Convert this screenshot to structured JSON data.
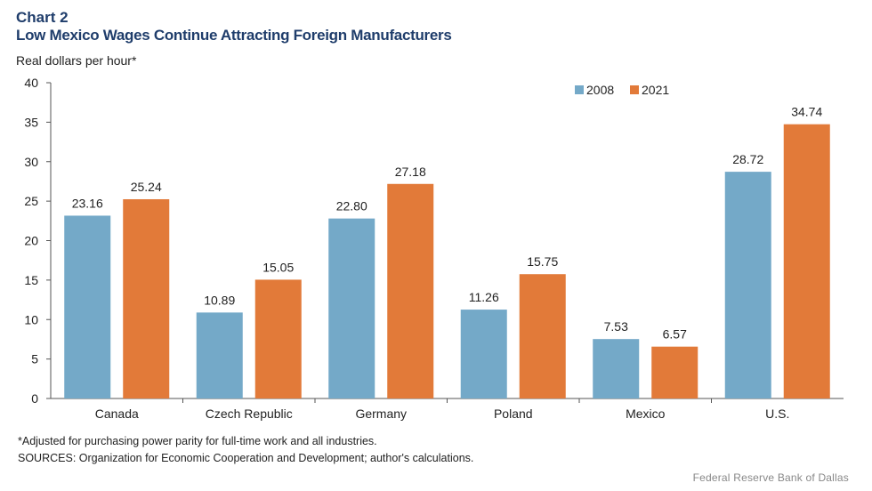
{
  "chart_data": {
    "type": "bar",
    "label": "Chart 2",
    "title": "Low Mexico Wages Continue Attracting Foreign Manufacturers",
    "ylabel": "Real dollars per hour*",
    "xlabel": "",
    "ylim": [
      0,
      40
    ],
    "yticks": [
      0,
      5,
      10,
      15,
      20,
      25,
      30,
      35,
      40
    ],
    "categories": [
      "Canada",
      "Czech Republic",
      "Germany",
      "Poland",
      "Mexico",
      "U.S."
    ],
    "series": [
      {
        "name": "2008",
        "color": "#74a9c8",
        "values": [
          23.16,
          10.89,
          22.8,
          11.26,
          7.53,
          28.72
        ],
        "labels": [
          "23.16",
          "10.89",
          "22.80",
          "11.26",
          "7.53",
          "28.72"
        ]
      },
      {
        "name": "2021",
        "color": "#e27a39",
        "values": [
          25.24,
          15.05,
          27.18,
          15.75,
          6.57,
          34.74
        ],
        "labels": [
          "25.24",
          "15.05",
          "27.18",
          "15.75",
          "6.57",
          "34.74"
        ]
      }
    ],
    "legend_position": "top-right",
    "grid": false
  },
  "notes": {
    "footnote": "*Adjusted for purchasing power parity for full-time work and all industries.",
    "sources": "SOURCES: Organization for Economic Cooperation and Development; author's calculations.",
    "publisher": "Federal Reserve Bank of Dallas"
  }
}
